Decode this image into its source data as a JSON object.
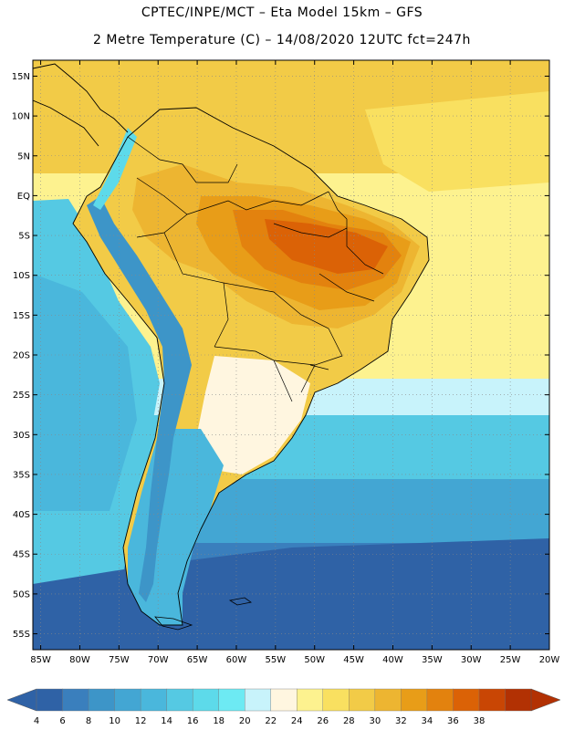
{
  "header": {
    "line1": "CPTEC/INPE/MCT –  Eta Model 15km – GFS",
    "line2": "2 Metre Temperature (C) – 14/08/2020 12UTC fct=247h"
  },
  "map": {
    "lat_labels": [
      "15N",
      "10N",
      "5N",
      "EQ",
      "5S",
      "10S",
      "15S",
      "20S",
      "25S",
      "30S",
      "35S",
      "40S",
      "45S",
      "50S",
      "55S"
    ],
    "lon_labels": [
      "85W",
      "80W",
      "75W",
      "70W",
      "65W",
      "60W",
      "55W",
      "50W",
      "45W",
      "40W",
      "35W",
      "30W",
      "25W",
      "20W"
    ],
    "lat_min": -57,
    "lat_max": 17,
    "lon_min": -86,
    "lon_max": -20
  },
  "legend": {
    "ticks": [
      "4",
      "6",
      "8",
      "10",
      "12",
      "14",
      "16",
      "18",
      "20",
      "22",
      "24",
      "26",
      "28",
      "30",
      "32",
      "34",
      "36",
      "38"
    ],
    "colors": [
      "#2f62a6",
      "#3a7fbd",
      "#3d95c8",
      "#43a6d3",
      "#4ab7dc",
      "#55c9e3",
      "#5ddaea",
      "#6deaf3",
      "#c8f3fb",
      "#fff6e0",
      "#fdf28f",
      "#f9e060",
      "#f2cb47",
      "#edb531",
      "#e89d18",
      "#e3820e",
      "#db6206",
      "#c94604",
      "#b23103"
    ],
    "under_color": "#2f62a6",
    "over_color": "#b23103"
  }
}
